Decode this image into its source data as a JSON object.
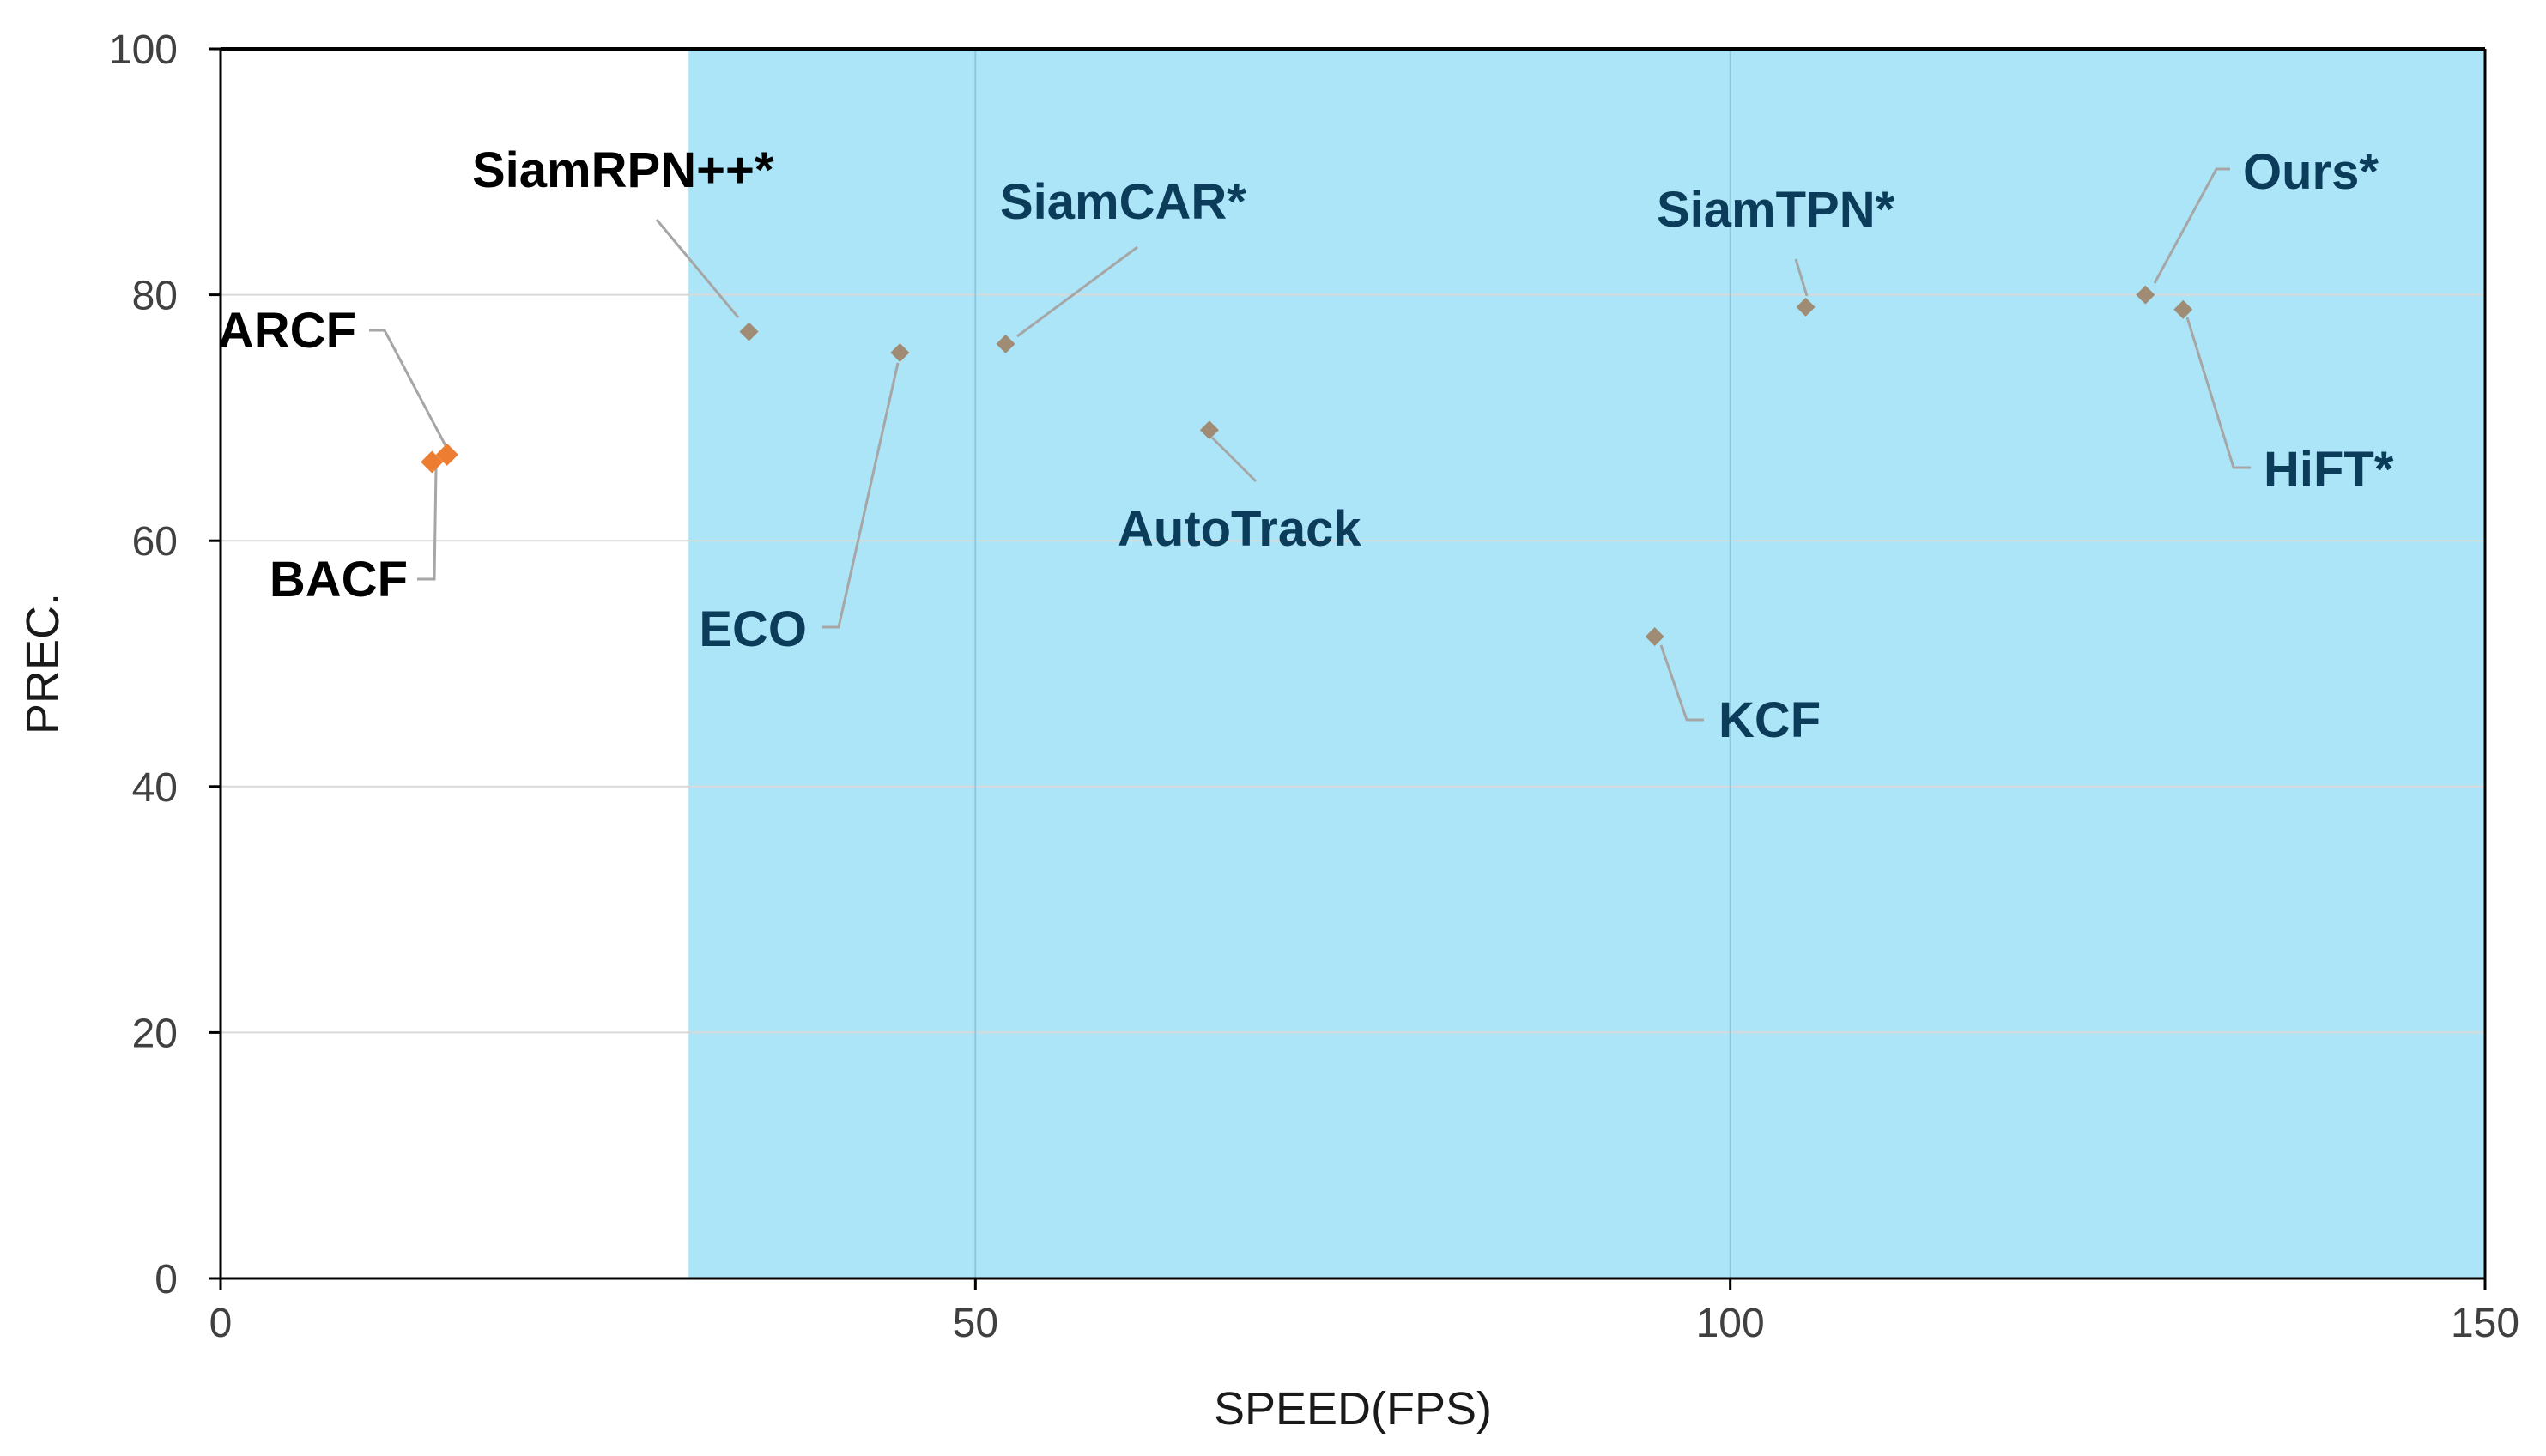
{
  "chart_data": {
    "type": "scatter",
    "title": "",
    "xlabel": "SPEED(FPS)",
    "ylabel": "PREC.",
    "xlim": [
      0,
      150
    ],
    "ylim": [
      0,
      100
    ],
    "x_ticks": [
      0,
      50,
      100,
      150
    ],
    "y_ticks": [
      0,
      20,
      40,
      60,
      80,
      100
    ],
    "grid": true,
    "realtime_region": {
      "x_from": 31,
      "x_to": 150,
      "color": "#ade5f8"
    },
    "colors": {
      "gpu_marker": "#a08c74",
      "cpu_marker": "#ed7d31",
      "label_dark": "#000000",
      "label_blue": "#0b3c5a",
      "grid": "#d9d9d9",
      "region_grid": "#8cc9de",
      "leader": "#a6a6a6"
    },
    "points": [
      {
        "label": "ARCF",
        "x": 15,
        "y": 67,
        "marker": "cpu"
      },
      {
        "label": "BACF",
        "x": 14,
        "y": 66.4,
        "marker": "cpu"
      },
      {
        "label": "SiamRPN++*",
        "x": 35,
        "y": 77,
        "marker": "gpu"
      },
      {
        "label": "ECO",
        "x": 45,
        "y": 75.3,
        "marker": "gpu"
      },
      {
        "label": "SiamCAR*",
        "x": 52,
        "y": 76,
        "marker": "gpu"
      },
      {
        "label": "AutoTrack",
        "x": 65.5,
        "y": 69,
        "marker": "gpu"
      },
      {
        "label": "KCF",
        "x": 95,
        "y": 52.2,
        "marker": "gpu"
      },
      {
        "label": "SiamTPN*",
        "x": 105,
        "y": 79,
        "marker": "gpu"
      },
      {
        "label": "Ours*",
        "x": 127.5,
        "y": 80,
        "marker": "gpu"
      },
      {
        "label": "HiFT*",
        "x": 130,
        "y": 78.8,
        "marker": "gpu"
      }
    ]
  }
}
